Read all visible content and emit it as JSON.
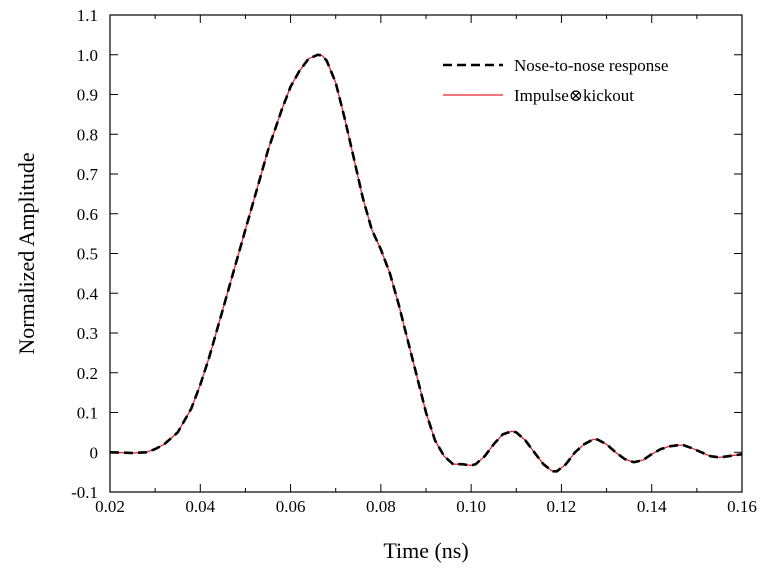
{
  "chart_data": {
    "type": "line",
    "title": "",
    "xlabel": "Time (ns)",
    "ylabel": "Normalized Amplitude",
    "xlim": [
      0.02,
      0.16
    ],
    "ylim": [
      -0.1,
      1.1
    ],
    "xticks": [
      0.02,
      0.04,
      0.06,
      0.08,
      0.1,
      0.12,
      0.14,
      0.16
    ],
    "xtick_labels": [
      "0.02",
      "0.04",
      "0.06",
      "0.08",
      "0.10",
      "0.12",
      "0.14",
      "0.16"
    ],
    "yticks": [
      -0.1,
      0,
      0.1,
      0.2,
      0.3,
      0.4,
      0.5,
      0.6,
      0.7,
      0.8,
      0.9,
      1.0,
      1.1
    ],
    "ytick_labels": [
      "-0.1",
      "0",
      "0.1",
      "0.2",
      "0.3",
      "0.4",
      "0.5",
      "0.6",
      "0.7",
      "0.8",
      "0.9",
      "1.0",
      "1.1"
    ],
    "grid": false,
    "legend_position": "top-right",
    "series": [
      {
        "name": "Nose-to-nose response",
        "color": "#000000",
        "style": "dashed",
        "x": [
          0.02,
          0.025,
          0.028,
          0.03,
          0.032,
          0.035,
          0.038,
          0.04,
          0.042,
          0.045,
          0.048,
          0.05,
          0.053,
          0.055,
          0.058,
          0.06,
          0.062,
          0.064,
          0.066,
          0.067,
          0.068,
          0.07,
          0.072,
          0.074,
          0.076,
          0.078,
          0.08,
          0.082,
          0.084,
          0.086,
          0.088,
          0.09,
          0.092,
          0.094,
          0.096,
          0.098,
          0.1,
          0.101,
          0.103,
          0.105,
          0.107,
          0.109,
          0.11,
          0.112,
          0.114,
          0.116,
          0.118,
          0.119,
          0.121,
          0.123,
          0.125,
          0.127,
          0.128,
          0.13,
          0.132,
          0.134,
          0.136,
          0.138,
          0.14,
          0.142,
          0.144,
          0.146,
          0.147,
          0.149,
          0.151,
          0.153,
          0.155,
          0.157,
          0.16
        ],
        "y": [
          0.0,
          -0.002,
          0.0,
          0.008,
          0.02,
          0.05,
          0.11,
          0.17,
          0.24,
          0.36,
          0.48,
          0.56,
          0.68,
          0.76,
          0.86,
          0.92,
          0.96,
          0.99,
          1.0,
          0.998,
          0.985,
          0.93,
          0.84,
          0.74,
          0.64,
          0.56,
          0.51,
          0.45,
          0.37,
          0.28,
          0.19,
          0.1,
          0.03,
          -0.01,
          -0.03,
          -0.03,
          -0.033,
          -0.03,
          -0.01,
          0.02,
          0.045,
          0.053,
          0.05,
          0.03,
          0.0,
          -0.03,
          -0.048,
          -0.048,
          -0.03,
          0.0,
          0.02,
          0.032,
          0.032,
          0.02,
          0.0,
          -0.017,
          -0.025,
          -0.02,
          -0.005,
          0.008,
          0.015,
          0.018,
          0.018,
          0.01,
          0.0,
          -0.01,
          -0.013,
          -0.01,
          -0.005
        ]
      },
      {
        "name": "Impulse⊗kickout",
        "color": "#e8252b",
        "style": "solid",
        "x": [
          0.02,
          0.025,
          0.028,
          0.03,
          0.032,
          0.035,
          0.038,
          0.04,
          0.042,
          0.045,
          0.048,
          0.05,
          0.053,
          0.055,
          0.058,
          0.06,
          0.062,
          0.064,
          0.066,
          0.067,
          0.068,
          0.07,
          0.072,
          0.074,
          0.076,
          0.078,
          0.08,
          0.082,
          0.084,
          0.086,
          0.088,
          0.09,
          0.092,
          0.094,
          0.096,
          0.098,
          0.1,
          0.101,
          0.103,
          0.105,
          0.107,
          0.109,
          0.11,
          0.112,
          0.114,
          0.116,
          0.118,
          0.119,
          0.121,
          0.123,
          0.125,
          0.127,
          0.128,
          0.13,
          0.132,
          0.134,
          0.136,
          0.138,
          0.14,
          0.142,
          0.144,
          0.146,
          0.147,
          0.149,
          0.151,
          0.153,
          0.155,
          0.157,
          0.16
        ],
        "y": [
          0.0,
          -0.002,
          0.0,
          0.008,
          0.02,
          0.05,
          0.11,
          0.17,
          0.24,
          0.36,
          0.48,
          0.56,
          0.68,
          0.76,
          0.86,
          0.92,
          0.96,
          0.99,
          1.0,
          0.998,
          0.985,
          0.93,
          0.84,
          0.74,
          0.64,
          0.56,
          0.51,
          0.45,
          0.37,
          0.28,
          0.19,
          0.1,
          0.03,
          -0.01,
          -0.03,
          -0.03,
          -0.033,
          -0.03,
          -0.01,
          0.02,
          0.045,
          0.053,
          0.05,
          0.03,
          0.0,
          -0.03,
          -0.048,
          -0.048,
          -0.03,
          0.0,
          0.02,
          0.032,
          0.032,
          0.02,
          0.0,
          -0.017,
          -0.025,
          -0.02,
          -0.005,
          0.008,
          0.015,
          0.018,
          0.018,
          0.01,
          0.0,
          -0.01,
          -0.013,
          -0.01,
          -0.005
        ]
      }
    ]
  }
}
